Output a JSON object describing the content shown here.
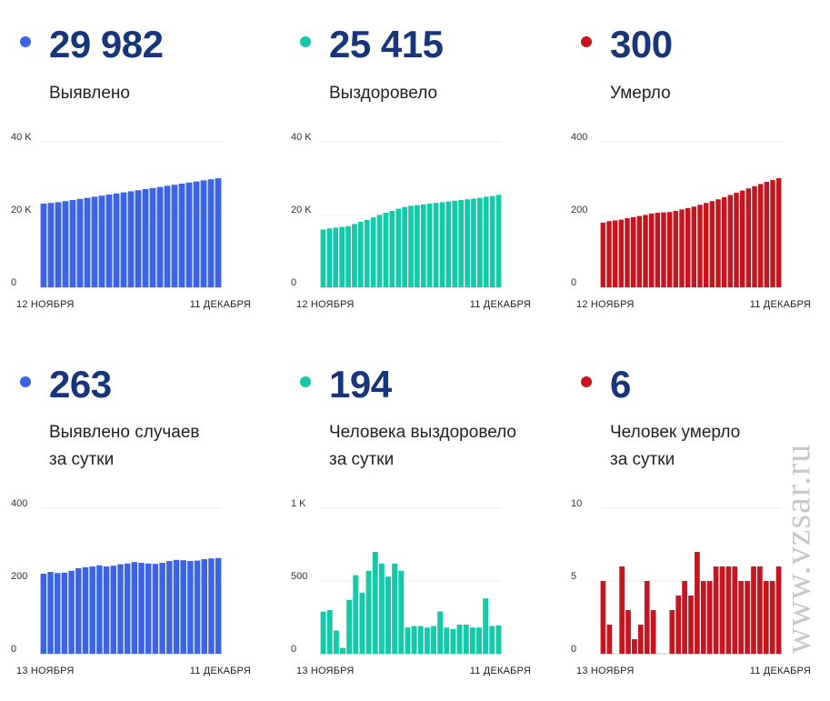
{
  "watermark": "www.vzsar.ru",
  "panels": [
    {
      "value": "29 982",
      "label1": "Выявлено",
      "label2": "",
      "color": "#3b63e5",
      "chart_data": {
        "type": "bar",
        "ylim": [
          0,
          40000
        ],
        "yticks": [
          0,
          20000,
          40000
        ],
        "ytick_labels": [
          "0",
          "20 K",
          "40 K"
        ],
        "xlabel_start": "12 НОЯБРЯ",
        "xlabel_end": "11 ДЕКАБРЯ",
        "values": [
          23000,
          23200,
          23400,
          23700,
          24000,
          24300,
          24600,
          24900,
          25200,
          25500,
          25800,
          26100,
          26400,
          26700,
          27000,
          27300,
          27600,
          27900,
          28200,
          28500,
          28800,
          29100,
          29400,
          29700,
          29982
        ]
      }
    },
    {
      "value": "25 415",
      "label1": "Выздоровело",
      "label2": "",
      "color": "#13c9a7",
      "chart_data": {
        "type": "bar",
        "ylim": [
          0,
          40000
        ],
        "yticks": [
          0,
          20000,
          40000
        ],
        "ytick_labels": [
          "0",
          "20 K",
          "40 K"
        ],
        "xlabel_start": "12 НОЯБРЯ",
        "xlabel_end": "11 ДЕКАБРЯ",
        "values": [
          15900,
          16200,
          16400,
          16600,
          16800,
          17400,
          18000,
          18500,
          19200,
          19900,
          20500,
          21000,
          21600,
          22100,
          22400,
          22600,
          22800,
          23000,
          23200,
          23400,
          23600,
          23800,
          24000,
          24200,
          24400,
          24600,
          24900,
          25100,
          25415
        ]
      }
    },
    {
      "value": "300",
      "label1": "Умерло",
      "label2": "",
      "color": "#c71520",
      "chart_data": {
        "type": "bar",
        "ylim": [
          0,
          400
        ],
        "yticks": [
          0,
          200,
          400
        ],
        "ytick_labels": [
          "0",
          "200",
          "400"
        ],
        "xlabel_start": "12 НОЯБРЯ",
        "xlabel_end": "11 ДЕКАБРЯ",
        "values": [
          178,
          182,
          184,
          186,
          190,
          193,
          196,
          199,
          203,
          205,
          206,
          207,
          210,
          214,
          218,
          222,
          227,
          232,
          237,
          242,
          248,
          254,
          260,
          266,
          272,
          278,
          284,
          290,
          295,
          300
        ]
      }
    },
    {
      "value": "263",
      "label1": "Выявлено случаев",
      "label2": "за сутки",
      "color": "#3b63e5",
      "chart_data": {
        "type": "bar",
        "ylim": [
          0,
          400
        ],
        "yticks": [
          0,
          200,
          400
        ],
        "ytick_labels": [
          "0",
          "200",
          "400"
        ],
        "xlabel_start": "13 НОЯБРЯ",
        "xlabel_end": "11 ДЕКАБРЯ",
        "values": [
          220,
          225,
          222,
          223,
          228,
          235,
          238,
          240,
          243,
          240,
          242,
          246,
          248,
          252,
          250,
          248,
          247,
          250,
          255,
          258,
          257,
          255,
          256,
          260,
          262,
          263
        ]
      }
    },
    {
      "value": "194",
      "label1": "Человека выздоровело",
      "label2": "за сутки",
      "color": "#13c9a7",
      "chart_data": {
        "type": "bar",
        "ylim": [
          0,
          1000
        ],
        "yticks": [
          0,
          500,
          1000
        ],
        "ytick_labels": [
          "0",
          "500",
          "1 K"
        ],
        "xlabel_start": "13 НОЯБРЯ",
        "xlabel_end": "11 ДЕКАБРЯ",
        "values": [
          290,
          300,
          160,
          40,
          370,
          540,
          420,
          570,
          700,
          620,
          530,
          620,
          570,
          180,
          190,
          190,
          180,
          190,
          290,
          180,
          170,
          200,
          200,
          180,
          180,
          380,
          190,
          194
        ]
      }
    },
    {
      "value": "6",
      "label1": "Человек умерло",
      "label2": "за сутки",
      "color": "#c71520",
      "chart_data": {
        "type": "bar",
        "ylim": [
          0,
          10
        ],
        "yticks": [
          0,
          5,
          10
        ],
        "ytick_labels": [
          "0",
          "5",
          "10"
        ],
        "xlabel_start": "13 НОЯБРЯ",
        "xlabel_end": "11 ДЕКАБРЯ",
        "values": [
          5,
          2,
          0,
          6,
          3,
          1,
          2,
          5,
          3,
          0,
          0,
          3,
          4,
          5,
          4,
          7,
          5,
          5,
          6,
          6,
          6,
          6,
          5,
          5,
          6,
          6,
          5,
          5,
          6
        ]
      }
    }
  ]
}
